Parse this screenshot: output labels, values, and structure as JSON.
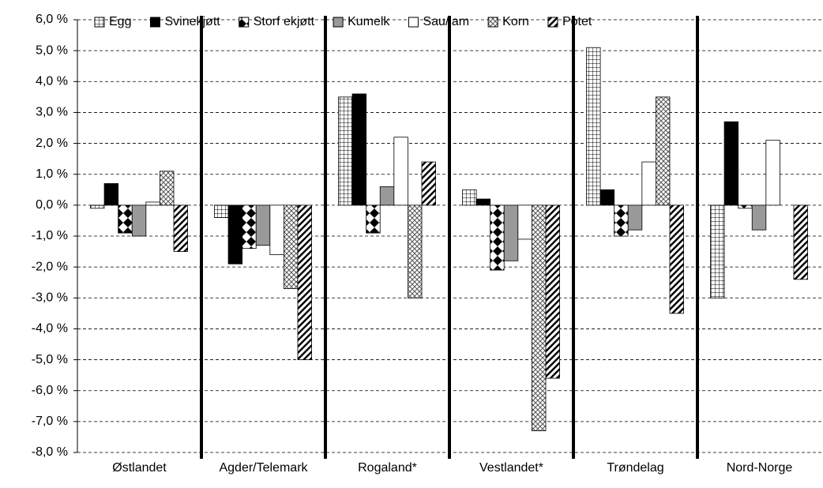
{
  "chart_data": {
    "type": "bar",
    "categories": [
      "Østlandet",
      "Agder/Telemark",
      "Rogaland*",
      "Vestlandet*",
      "Trøndelag",
      "Nord-Norge"
    ],
    "series": [
      {
        "name": "Egg",
        "color": "#ffffff",
        "pattern": "grid",
        "values": [
          -0.1,
          -0.4,
          3.5,
          0.5,
          5.1,
          -3.0
        ]
      },
      {
        "name": "Svinekjøtt",
        "color": "#000000",
        "pattern": "solid",
        "values": [
          0.7,
          -1.9,
          3.6,
          0.2,
          0.5,
          2.7
        ]
      },
      {
        "name": "Storf ekjøtt",
        "color": "#ffffff",
        "pattern": "diamond",
        "values": [
          -0.9,
          -1.4,
          -0.9,
          -2.1,
          -1.0,
          -0.1
        ]
      },
      {
        "name": "Kumelk",
        "color": "#999999",
        "pattern": "solid",
        "values": [
          -1.0,
          -1.3,
          0.6,
          -1.8,
          -0.8,
          -0.8
        ]
      },
      {
        "name": "Sau/lam",
        "color": "#ffffff",
        "pattern": "solid",
        "values": [
          0.1,
          -1.6,
          2.2,
          -1.1,
          1.4,
          2.1
        ]
      },
      {
        "name": "Korn",
        "color": "#ffffff",
        "pattern": "cross",
        "values": [
          1.1,
          -2.7,
          -3.0,
          -7.3,
          3.5,
          0
        ]
      },
      {
        "name": "Potet",
        "color": "#ffffff",
        "pattern": "diagonal",
        "values": [
          -1.5,
          -5.0,
          1.4,
          -5.6,
          -3.5,
          -2.4
        ]
      }
    ],
    "ylim": [
      -8,
      6
    ],
    "yticks": [
      {
        "value": -8,
        "label": "-8,0 %"
      },
      {
        "value": -7,
        "label": "-7,0 %"
      },
      {
        "value": -6,
        "label": "-6,0 %"
      },
      {
        "value": -5,
        "label": "-5,0 %"
      },
      {
        "value": -4,
        "label": "-4,0 %"
      },
      {
        "value": -3,
        "label": "-3,0 %"
      },
      {
        "value": -2,
        "label": "-2,0 %"
      },
      {
        "value": -1,
        "label": "-1,0 %"
      },
      {
        "value": 0,
        "label": "0,0 %"
      },
      {
        "value": 1,
        "label": "1,0 %"
      },
      {
        "value": 2,
        "label": "2,0 %"
      },
      {
        "value": 3,
        "label": "3,0 %"
      },
      {
        "value": 4,
        "label": "4,0 %"
      },
      {
        "value": 5,
        "label": "5,0 %"
      },
      {
        "value": 6,
        "label": "6,0 %"
      }
    ],
    "grid": true,
    "legend": "top"
  }
}
